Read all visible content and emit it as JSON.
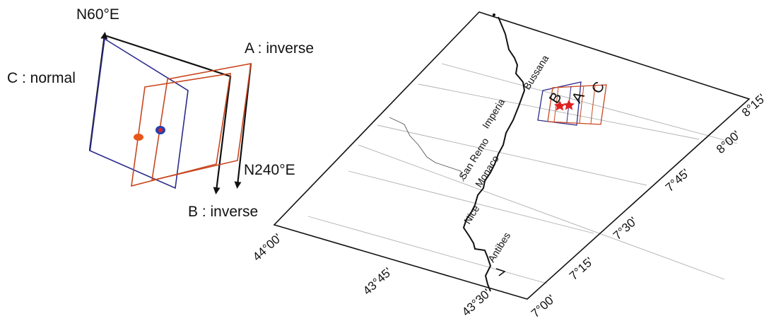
{
  "fault_diagram": {
    "directions": {
      "north": "N60°E",
      "south": "N240°E"
    },
    "planes": [
      {
        "label": "A : inverse"
      },
      {
        "label": "B : inverse"
      },
      {
        "label": "C : normal"
      }
    ],
    "colors": {
      "nodal_planes_orange": "#c8461e",
      "nodal_planes_blue": "#2b2b8c",
      "epicenter_orange": "#e8561a",
      "epicenter_blue": "#2340b0"
    }
  },
  "map": {
    "latitude_labels": [
      "44°00'",
      "43°45'",
      "43°30'"
    ],
    "longitude_labels": [
      "7°00'",
      "7°15'",
      "7°30'",
      "7°45'",
      "8°00'",
      "8°15'"
    ],
    "places": [
      "Bussana",
      "Imperia",
      "San Remo",
      "Monaco",
      "Nice",
      "Antibes"
    ],
    "inset_labels": [
      "B",
      "A",
      "C"
    ],
    "colors": {
      "star": "#e02020",
      "grid": "#b0b0b0",
      "coast": "#111111"
    }
  }
}
